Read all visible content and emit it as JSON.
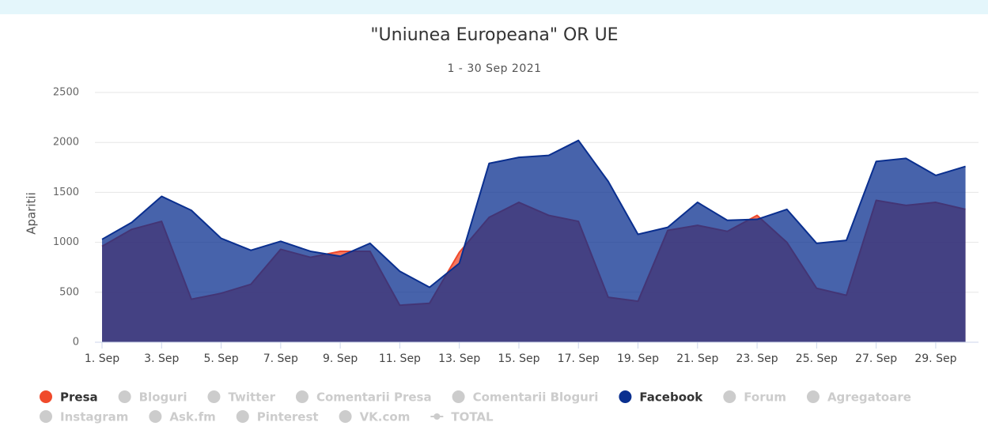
{
  "chart_data": {
    "type": "area",
    "title": "\"Uniunea Europeana\" OR UE",
    "subtitle": "1 - 30 Sep 2021",
    "y_label": "Aparitii",
    "categories": [
      "1. Sep",
      null,
      "3. Sep",
      null,
      "5. Sep",
      null,
      "7. Sep",
      null,
      "9. Sep",
      null,
      "11. Sep",
      null,
      "13. Sep",
      null,
      "15. Sep",
      null,
      "17. Sep",
      null,
      "19. Sep",
      null,
      "21. Sep",
      null,
      "23. Sep",
      null,
      "25. Sep",
      null,
      "27. Sep",
      null,
      "29. Sep",
      null
    ],
    "ylim": [
      0,
      2500
    ],
    "yticks": [
      0,
      500,
      1000,
      1500,
      2000,
      2500
    ],
    "grid": true,
    "series": [
      {
        "name": "Presa",
        "color": "#f04a2b",
        "values": [
          960,
          1130,
          1210,
          430,
          490,
          580,
          930,
          850,
          910,
          910,
          370,
          390,
          900,
          1250,
          1400,
          1270,
          1210,
          450,
          410,
          1120,
          1170,
          1110,
          1270,
          1000,
          540,
          470,
          1420,
          1370,
          1400,
          1330
        ]
      },
      {
        "name": "Bloguri",
        "visible": false
      },
      {
        "name": "Twitter",
        "visible": false
      },
      {
        "name": "Comentarii Presa",
        "visible": false
      },
      {
        "name": "Comentarii Bloguri",
        "visible": false
      },
      {
        "name": "Facebook",
        "color": "#0a2f8f",
        "values": [
          1030,
          1200,
          1460,
          1320,
          1040,
          920,
          1010,
          910,
          860,
          990,
          710,
          550,
          790,
          1790,
          1850,
          1870,
          2020,
          1610,
          1080,
          1150,
          1400,
          1220,
          1230,
          1330,
          990,
          1020,
          1810,
          1840,
          1670,
          1760
        ]
      },
      {
        "name": "Forum",
        "visible": false
      },
      {
        "name": "Agregatoare",
        "visible": false
      },
      {
        "name": "Instagram",
        "visible": false
      },
      {
        "name": "Ask.fm",
        "visible": false
      },
      {
        "name": "Pinterest",
        "visible": false
      },
      {
        "name": "VK.com",
        "visible": false
      },
      {
        "name": "TOTAL",
        "visible": false,
        "symbol": "line"
      }
    ]
  }
}
